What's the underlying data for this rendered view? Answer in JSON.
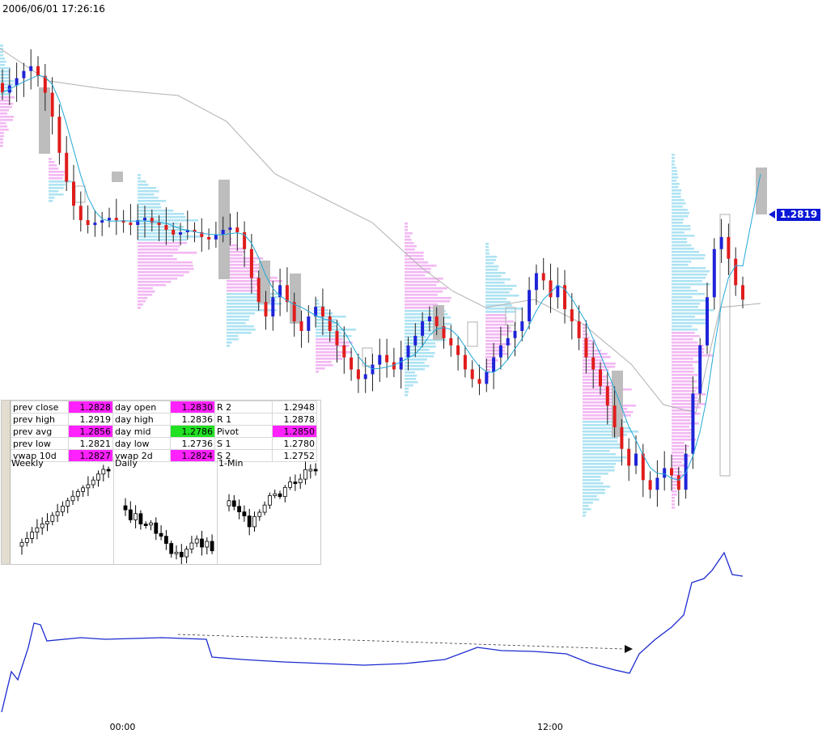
{
  "timestamp": "2006/06/01 17:26:16",
  "last_price": "1.2819",
  "stats_rows": [
    {
      "l1": "prev close",
      "v1": "1.2828",
      "c1": "mag",
      "l2": "day open",
      "v2": "1.2830",
      "c2": "mag",
      "l3": "R 2",
      "v3": "1.2948",
      "c3": ""
    },
    {
      "l1": "prev high",
      "v1": "1.2919",
      "c1": "",
      "l2": "day high",
      "v2": "1.2836",
      "c2": "",
      "l3": "R 1",
      "v3": "1.2878",
      "c3": ""
    },
    {
      "l1": "prev avg",
      "v1": "1.2856",
      "c1": "mag",
      "l2": "day mid",
      "v2": "1.2786",
      "c2": "grn",
      "l3": "Pivot",
      "v3": "1.2850",
      "c3": "mag"
    },
    {
      "l1": "prev low",
      "v1": "1.2821",
      "c1": "",
      "l2": "day low",
      "v2": "1.2736",
      "c2": "",
      "l3": "S 1",
      "v3": "1.2780",
      "c3": ""
    },
    {
      "l1": "vwap 10d",
      "v1": "1.2827",
      "c1": "mag",
      "l2": "vwap 2d",
      "v2": "1.2824",
      "c2": "mag",
      "l3": "S 2",
      "v3": "1.2752",
      "c3": ""
    }
  ],
  "mini_titles": [
    "Weekly",
    "Daily",
    "1-Min"
  ],
  "x_ticks": [
    {
      "label": "00:00",
      "x": 0.145
    },
    {
      "label": "12:00",
      "x": 0.657
    }
  ],
  "chart_data": {
    "type": "line",
    "title": "",
    "series": [
      {
        "name": "",
        "kind": "candlestick",
        "close": [
          1.2905,
          1.2908,
          1.2911,
          1.2914,
          1.2916,
          1.2912,
          1.2905,
          1.2895,
          1.288,
          1.2868,
          1.2858,
          1.2852,
          1.285,
          1.2851,
          1.2852,
          1.2853,
          1.2852,
          1.2851,
          1.285,
          1.2852,
          1.2853,
          1.2851,
          1.285,
          1.2848,
          1.2846,
          1.2847,
          1.2848,
          1.2847,
          1.2845,
          1.2844,
          1.2846,
          1.2848,
          1.2849,
          1.2847,
          1.284,
          1.2828,
          1.2818,
          1.2812,
          1.282,
          1.2825,
          1.2818,
          1.281,
          1.2806,
          1.2812,
          1.2816,
          1.2812,
          1.2806,
          1.28,
          1.2795,
          1.279,
          1.2786,
          1.2788,
          1.2792,
          1.2796,
          1.2793,
          1.279,
          1.2795,
          1.28,
          1.2804,
          1.281,
          1.2812,
          1.2808,
          1.2803,
          1.28,
          1.2796,
          1.279,
          1.2786,
          1.2784,
          1.2789,
          1.2795,
          1.28,
          1.2803,
          1.2806,
          1.281,
          1.2823,
          1.283,
          1.2827,
          1.282,
          1.2825,
          1.2815,
          1.281,
          1.2803,
          1.2795,
          1.279,
          1.2783,
          1.2775,
          1.2766,
          1.2757,
          1.275,
          1.2755,
          1.2744,
          1.274,
          1.2745,
          1.2749,
          1.2746,
          1.274,
          1.2755,
          1.278,
          1.28,
          1.282,
          1.284,
          1.2845,
          1.2836,
          1.2825,
          1.2819
        ]
      },
      {
        "name": "",
        "kind": "moving-average"
      },
      {
        "name": "",
        "kind": "volume-profile"
      },
      {
        "name": "",
        "kind": "cumulative-line"
      }
    ]
  }
}
